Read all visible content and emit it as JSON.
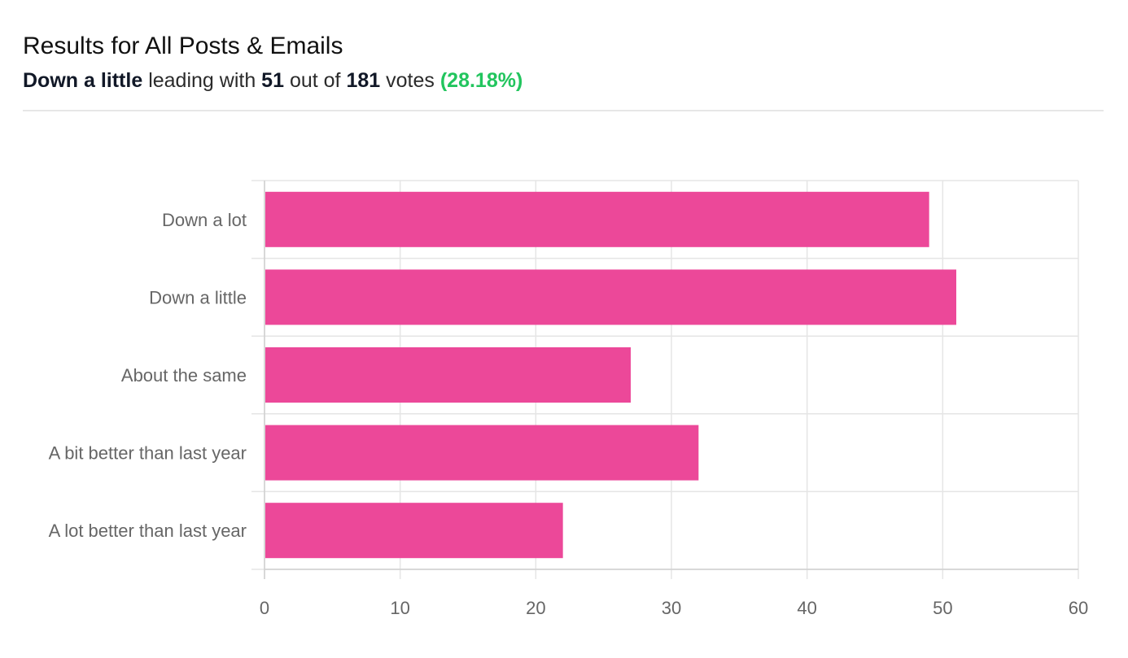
{
  "header": {
    "title": "Results for All Posts & Emails",
    "leader_label": "Down a little",
    "leading_with_text": "leading with",
    "leader_votes": "51",
    "out_of_text": "out of",
    "total_votes": "181",
    "votes_text": "votes",
    "leader_percent": "(28.18%)"
  },
  "colors": {
    "bar": "#EC4899",
    "percent": "#22C55E",
    "grid": "#E5E5E5",
    "axis_text": "#666666"
  },
  "chart_data": {
    "type": "bar",
    "orientation": "horizontal",
    "categories": [
      "Down a lot",
      "Down a little",
      "About the same",
      "A bit better than last year",
      "A lot better than last year"
    ],
    "values": [
      49,
      51,
      27,
      32,
      22
    ],
    "xlim": [
      0,
      60
    ],
    "xticks": [
      0,
      10,
      20,
      30,
      40,
      50,
      60
    ],
    "grid": true,
    "legend": "none"
  }
}
